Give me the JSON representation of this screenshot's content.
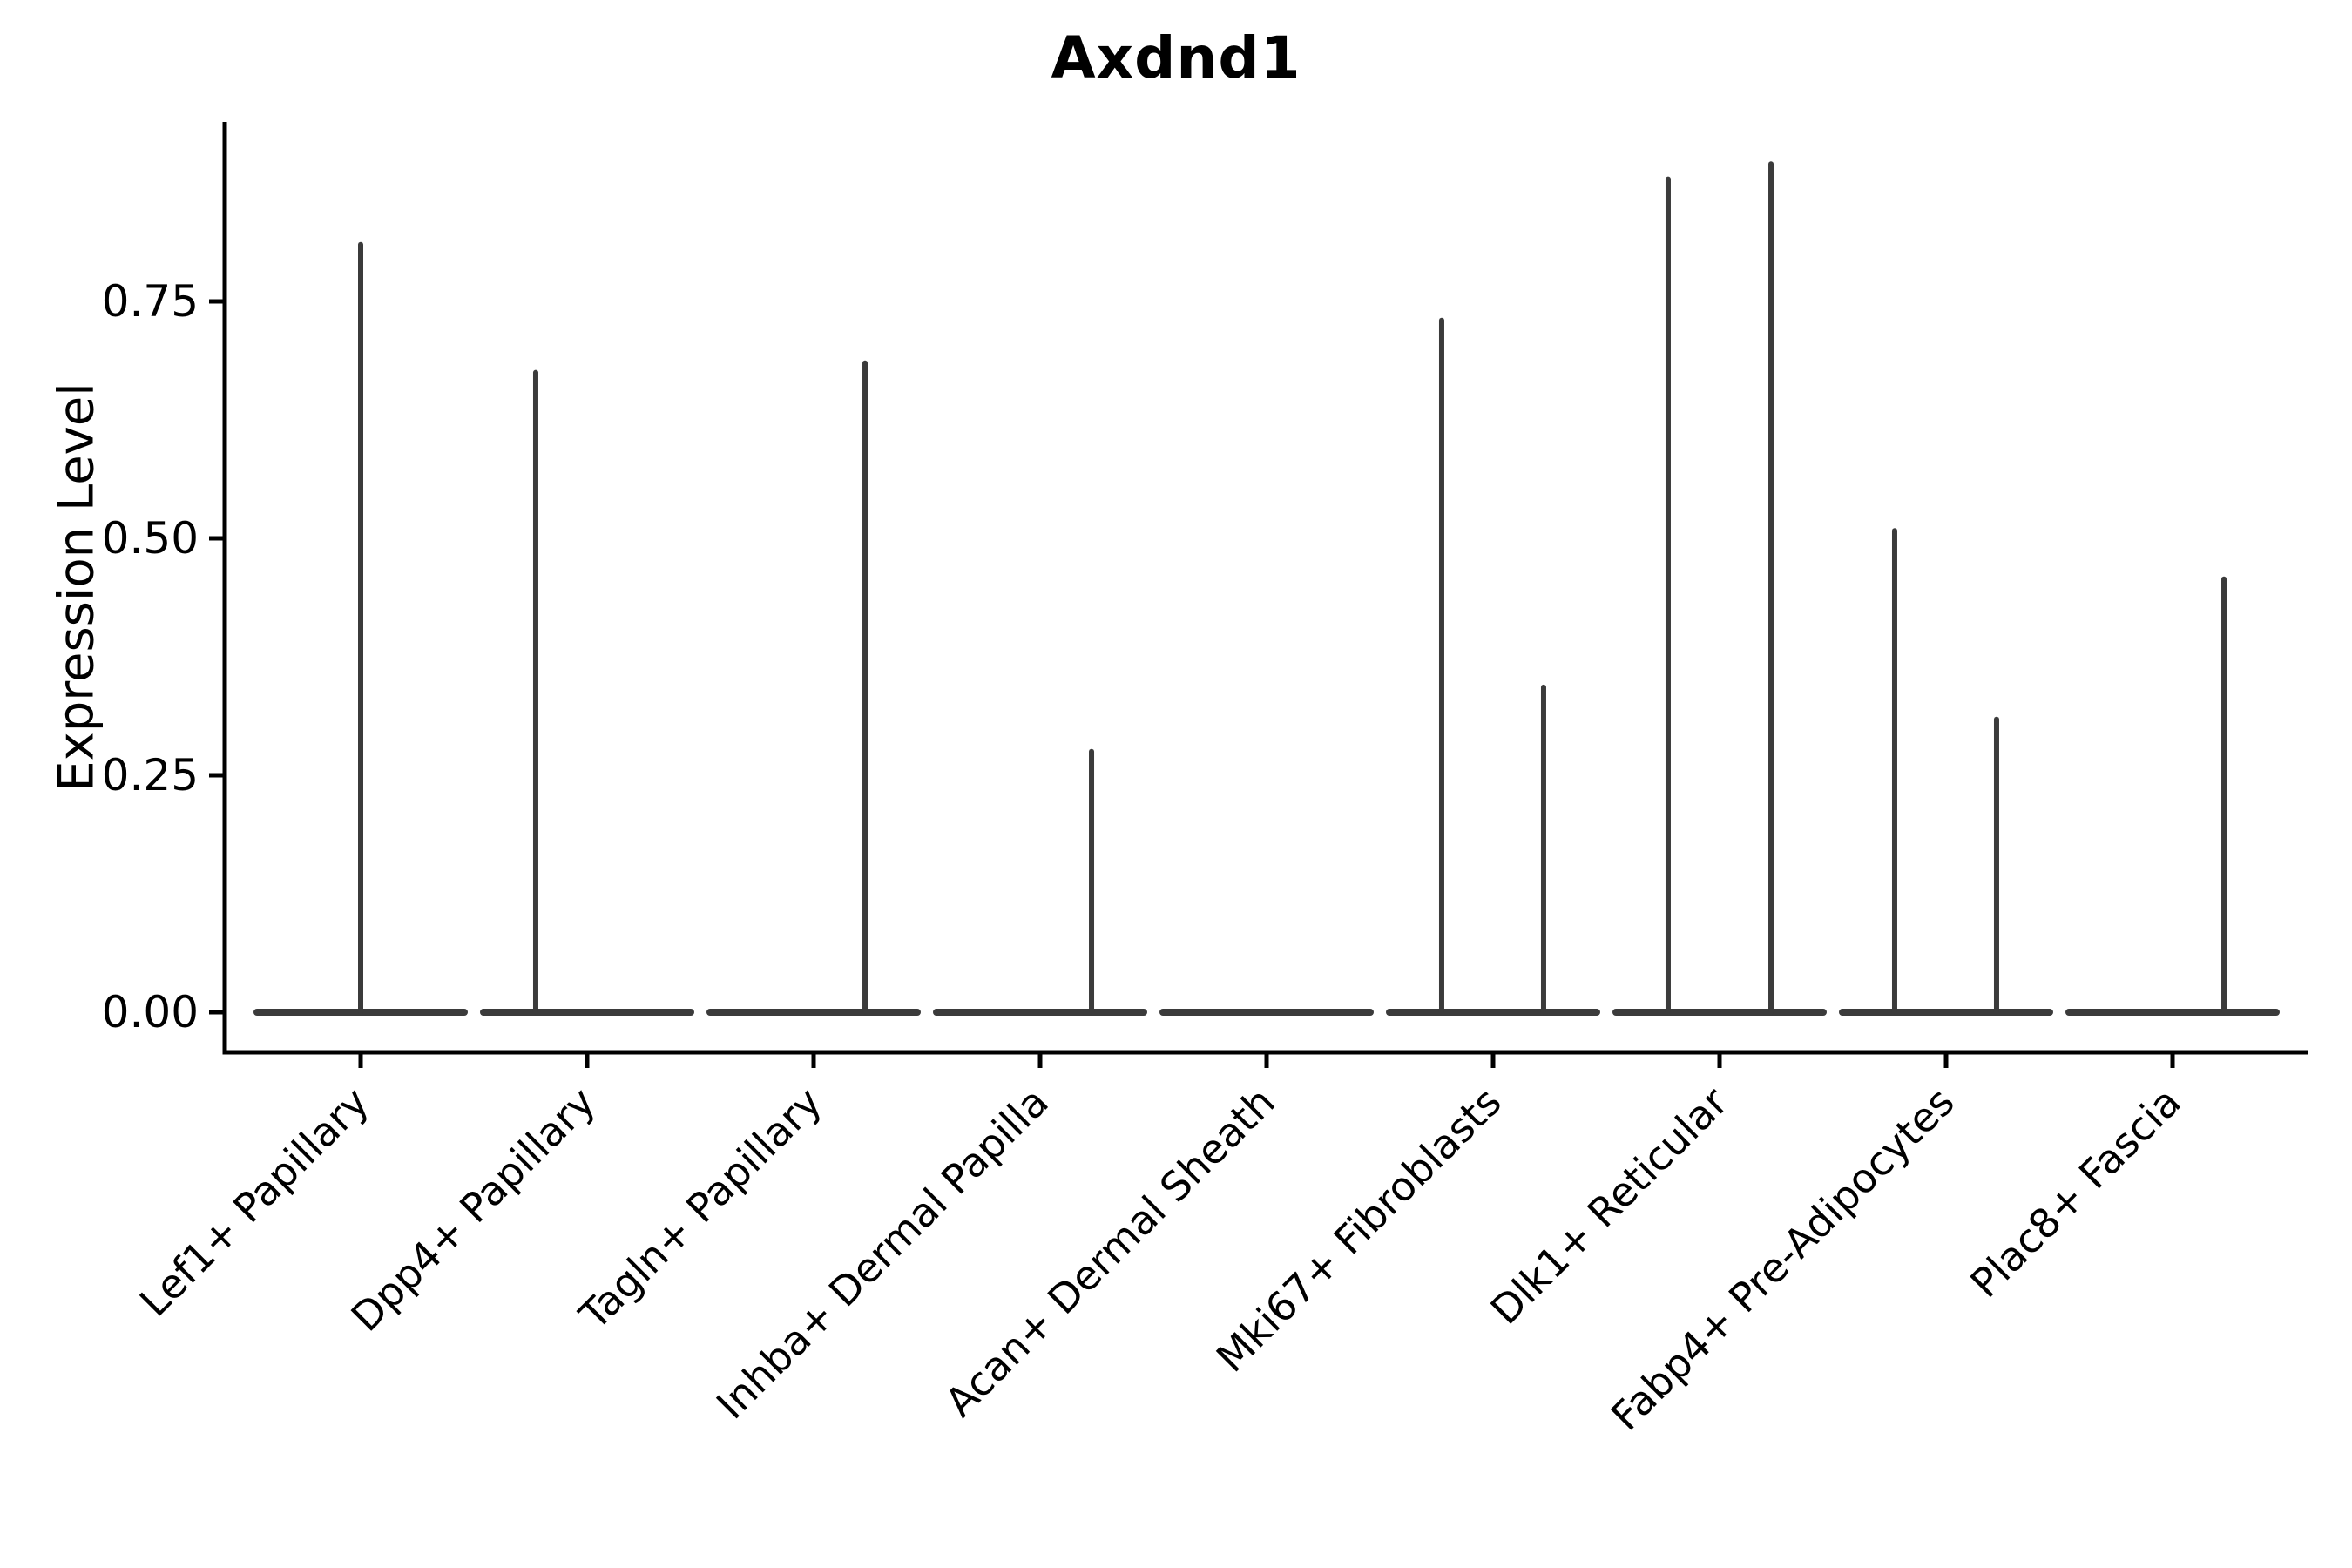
{
  "chart_data": {
    "type": "violin",
    "title": "Axdnd1",
    "ylabel": "Expression Level",
    "xlabel": "",
    "ylim": [
      0,
      0.94
    ],
    "grid": false,
    "legend": false,
    "axis_color": "#000000",
    "violin_color": "#3b3b3b",
    "yticks": [
      {
        "label": "0.00",
        "value": 0.0
      },
      {
        "label": "0.25",
        "value": 0.25
      },
      {
        "label": "0.50",
        "value": 0.5
      },
      {
        "label": "0.75",
        "value": 0.75
      }
    ],
    "categories": [
      "Lef1+ Papillary",
      "Dpp4+ Papillary",
      "Tagln+ Papillary",
      "Inhba+ Dermal Papilla",
      "Acan+ Dermal Sheath",
      "Mki67+ Fibroblasts",
      "Dlk1+ Reticular",
      "Fabp4+ Pre-Adipocytes",
      "Plac8+ Fascia"
    ],
    "violins": [
      {
        "category": "Lef1+ Papillary",
        "body_at_zero": true,
        "spikes": [
          {
            "pos": 0.0,
            "value": 0.81
          }
        ]
      },
      {
        "category": "Dpp4+ Papillary",
        "body_at_zero": true,
        "spikes": [
          {
            "pos": -0.227,
            "value": 0.675
          }
        ]
      },
      {
        "category": "Tagln+ Papillary",
        "body_at_zero": true,
        "spikes": [
          {
            "pos": 0.227,
            "value": 0.685
          }
        ]
      },
      {
        "category": "Inhba+ Dermal Papilla",
        "body_at_zero": true,
        "spikes": [
          {
            "pos": 0.227,
            "value": 0.275
          }
        ]
      },
      {
        "category": "Acan+ Dermal Sheath",
        "body_at_zero": true,
        "spikes": []
      },
      {
        "category": "Mki67+ Fibroblasts",
        "body_at_zero": true,
        "spikes": [
          {
            "pos": -0.227,
            "value": 0.73
          },
          {
            "pos": 0.223,
            "value": 0.343
          }
        ]
      },
      {
        "category": "Dlk1+ Reticular",
        "body_at_zero": true,
        "spikes": [
          {
            "pos": -0.227,
            "value": 0.879
          },
          {
            "pos": 0.227,
            "value": 0.895
          }
        ]
      },
      {
        "category": "Fabp4+ Pre-Adipocytes",
        "body_at_zero": true,
        "spikes": [
          {
            "pos": -0.227,
            "value": 0.508
          },
          {
            "pos": 0.223,
            "value": 0.309
          }
        ]
      },
      {
        "category": "Plac8+ Fascia",
        "body_at_zero": true,
        "spikes": [
          {
            "pos": 0.227,
            "value": 0.457
          }
        ]
      }
    ]
  }
}
